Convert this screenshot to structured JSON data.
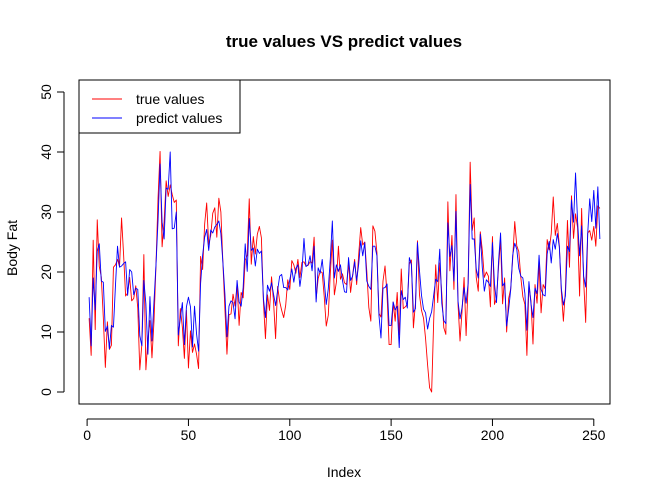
{
  "chart_data": {
    "type": "line",
    "title": "true values VS predict values",
    "xlabel": "Index",
    "ylabel": "Body Fat",
    "xlim": [
      -4,
      258
    ],
    "ylim": [
      -2,
      52
    ],
    "x_ticks": [
      0,
      50,
      100,
      150,
      200,
      250
    ],
    "y_ticks": [
      0,
      10,
      20,
      30,
      40,
      50
    ],
    "grid": false,
    "legend_position": "top-left",
    "series": [
      {
        "name": "true values",
        "color": "#ff0000",
        "values": [
          12.3,
          6.1,
          25.3,
          10.4,
          28.7,
          20.9,
          19.2,
          12.4,
          4.1,
          11.7,
          7.1,
          7.8,
          20.8,
          21.2,
          22.1,
          20.9,
          29.0,
          22.9,
          16.0,
          16.5,
          19.1,
          15.2,
          15.6,
          17.7,
          14.0,
          3.7,
          7.9,
          22.9,
          3.7,
          8.8,
          11.9,
          5.7,
          11.8,
          21.3,
          32.3,
          40.1,
          24.2,
          28.4,
          35.2,
          32.6,
          34.5,
          32.9,
          31.6,
          32.0,
          7.7,
          13.9,
          10.8,
          5.6,
          13.6,
          4.0,
          10.2,
          6.6,
          8.0,
          6.3,
          3.9,
          22.6,
          20.4,
          28.0,
          31.5,
          24.6,
          26.1,
          29.8,
          30.7,
          25.8,
          32.3,
          30.0,
          21.5,
          13.8,
          6.3,
          12.9,
          13.0,
          16.3,
          14.3,
          18.0,
          11.1,
          16.6,
          15.7,
          22.0,
          22.8,
          32.2,
          21.3,
          25.9,
          23.0,
          26.3,
          27.6,
          25.7,
          15.0,
          8.9,
          16.2,
          13.6,
          19.2,
          15.0,
          8.9,
          17.6,
          15.1,
          13.6,
          12.4,
          14.5,
          18.7,
          17.1,
          21.9,
          21.2,
          19.8,
          22.1,
          19.1,
          21.6,
          21.7,
          21.0,
          21.1,
          21.7,
          21.5,
          25.8,
          15.5,
          18.9,
          20.1,
          19.9,
          15.9,
          11.0,
          12.8,
          19.8,
          25.3,
          16.2,
          18.3,
          24.3,
          18.8,
          19.7,
          18.2,
          17.9,
          21.5,
          16.6,
          19.5,
          22.1,
          17.9,
          22.9,
          27.4,
          24.5,
          25.0,
          20.1,
          14.1,
          11.8,
          27.7,
          26.8,
          23.2,
          13.1,
          12.5,
          18.5,
          21.0,
          16.2,
          7.9,
          7.9,
          15.0,
          11.8,
          16.6,
          9.5,
          20.5,
          13.9,
          14.2,
          14.6,
          21.4,
          22.0,
          10.7,
          14.8,
          25.2,
          16.2,
          13.6,
          12.3,
          8.9,
          4.5,
          0.7,
          0.0,
          11.8,
          21.2,
          14.9,
          21.5,
          16.4,
          10.7,
          9.6,
          31.7,
          20.2,
          26.1,
          17.1,
          32.9,
          14.7,
          8.5,
          13.5,
          19.1,
          9.4,
          17.9,
          38.3,
          26.9,
          29.0,
          19.1,
          16.8,
          26.7,
          23.6,
          19.1,
          20.0,
          19.3,
          14.2,
          25.9,
          14.6,
          15.6,
          20.8,
          25.3,
          14.7,
          19.0,
          10.0,
          15.6,
          17.2,
          22.3,
          28.4,
          24.4,
          23.4,
          19.1,
          15.9,
          14.6,
          6.1,
          17.6,
          15.2,
          8.0,
          17.9,
          14.8,
          21.4,
          13.2,
          17.9,
          17.2,
          25.4,
          23.7,
          26.4,
          32.5,
          26.1,
          28.1,
          24.4,
          16.7,
          11.8,
          17.1,
          28.6,
          20.8,
          32.7,
          25.6,
          29.7,
          27.4,
          16.0,
          30.6,
          18.6,
          11.6,
          26.5,
          26.9,
          25.3,
          27.6,
          24.3,
          31.0,
          30.6
        ]
      },
      {
        "name": "predict values",
        "color": "#0000ff",
        "values": [
          15.8,
          7.7,
          19.0,
          13.7,
          23.5,
          24.7,
          18.5,
          18.3,
          10.1,
          11.0,
          7.2,
          11.1,
          10.8,
          17.8,
          24.3,
          20.8,
          21.0,
          21.4,
          21.7,
          16.1,
          20.4,
          20.0,
          16.2,
          17.3,
          17.1,
          9.4,
          7.7,
          18.6,
          14.7,
          6.3,
          15.9,
          8.5,
          15.1,
          21.3,
          28.6,
          38.0,
          28.3,
          25.5,
          34.0,
          33.8,
          40.0,
          27.2,
          27.3,
          30.0,
          9.5,
          12.3,
          14.9,
          7.9,
          14.2,
          15.8,
          14.2,
          7.5,
          14.3,
          9.7,
          6.8,
          18.1,
          22.8,
          25.8,
          27.1,
          23.6,
          27.0,
          26.5,
          27.5,
          27.9,
          28.5,
          26.4,
          21.6,
          16.3,
          9.2,
          14.3,
          15.2,
          14.9,
          12.2,
          18.6,
          15.0,
          14.3,
          17.4,
          24.7,
          20.1,
          28.9,
          23.6,
          24.0,
          21.0,
          23.8,
          23.1,
          23.5,
          15.6,
          12.4,
          17.8,
          16.8,
          18.2,
          16.3,
          14.4,
          16.9,
          19.3,
          19.6,
          17.4,
          17.4,
          17.0,
          18.7,
          20.5,
          18.3,
          20.6,
          21.2,
          17.6,
          20.1,
          25.6,
          20.9,
          21.2,
          22.7,
          20.2,
          24.3,
          15.0,
          20.7,
          19.8,
          22.1,
          18.5,
          14.6,
          17.2,
          22.2,
          28.5,
          19.0,
          21.2,
          20.1,
          21.2,
          18.6,
          16.7,
          16.6,
          22.4,
          18.6,
          19.3,
          21.7,
          18.6,
          21.3,
          25.2,
          22.7,
          24.9,
          18.5,
          17.6,
          17.1,
          24.3,
          24.3,
          22.7,
          12.8,
          9.0,
          17.3,
          17.4,
          18.0,
          11.1,
          11.1,
          15.0,
          13.7,
          14.3,
          7.4,
          16.9,
          15.4,
          15.8,
          14.0,
          22.4,
          21.2,
          13.3,
          13.9,
          24.9,
          20.2,
          16.1,
          13.8,
          13.2,
          10.5,
          12.3,
          13.4,
          16.1,
          18.8,
          18.4,
          23.8,
          14.8,
          11.9,
          11.4,
          28.2,
          22.6,
          24.4,
          18.5,
          30.1,
          15.2,
          12.2,
          14.1,
          17.4,
          14.8,
          18.1,
          34.6,
          25.5,
          25.5,
          20.5,
          19.0,
          26.3,
          20.7,
          16.8,
          18.7,
          18.3,
          17.6,
          24.9,
          18.0,
          14.9,
          21.7,
          26.5,
          17.7,
          18.2,
          11.0,
          13.8,
          17.0,
          22.8,
          24.8,
          23.8,
          20.6,
          19.3,
          19.0,
          16.4,
          10.3,
          18.4,
          14.7,
          12.4,
          17.3,
          16.4,
          22.8,
          17.1,
          16.2,
          16.0,
          23.0,
          25.1,
          21.5,
          25.4,
          23.8,
          26.4,
          24.2,
          17.2,
          14.5,
          16.0,
          24.3,
          23.4,
          32.0,
          28.3,
          36.5,
          28.5,
          22.7,
          27.7,
          19.3,
          17.5,
          26.4,
          32.2,
          28.4,
          33.6,
          27.3,
          34.2,
          25.5
        ]
      }
    ]
  }
}
